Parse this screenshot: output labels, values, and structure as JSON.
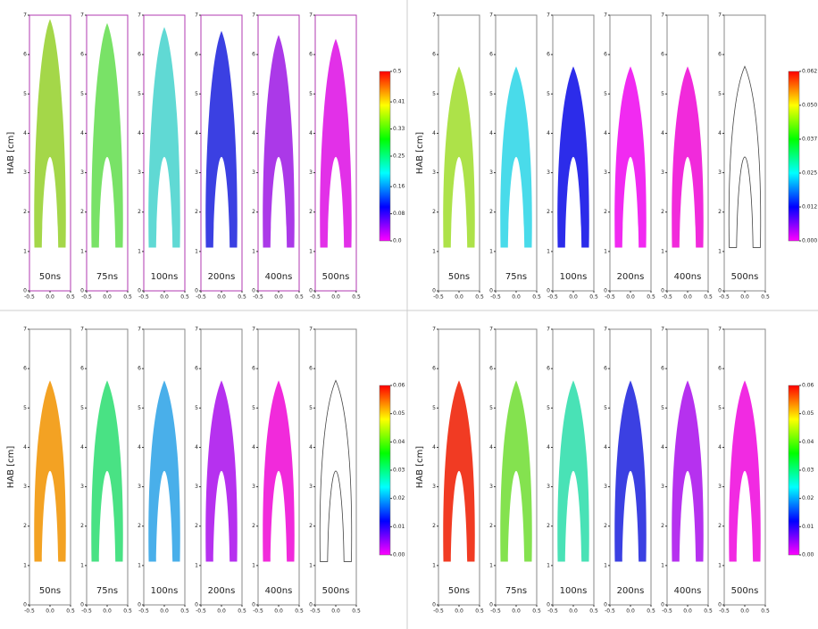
{
  "chart_data": [
    {
      "type": "heatmap",
      "ylabel": "HAB [cm]",
      "categories": [
        "50ns",
        "75ns",
        "100ns",
        "200ns",
        "400ns",
        "500ns"
      ],
      "colors": [
        "#9cd43a",
        "#6ee05a",
        "#52d6d0",
        "#2a30e0",
        "#a428e6",
        "#e01ee6"
      ],
      "frame_color": "#b03ab0",
      "xlim": [
        -0.5,
        0.5
      ],
      "xticks": [
        -0.5,
        {
          "value": 0,
          "label": "0.0"
        },
        0.5
      ],
      "ylim": [
        0,
        7
      ],
      "yticks": [
        0,
        1,
        2,
        3,
        4,
        5,
        6,
        7
      ],
      "clim": [
        0,
        0.5
      ],
      "cticks": [
        {
          "value": 0,
          "label": "0.0"
        },
        0.08,
        0.16,
        0.25,
        0.33,
        0.41,
        0.5
      ],
      "cmap": [
        "#ff00ff",
        "#0000ff",
        "#00ffff",
        "#00ff00",
        "#ffff00",
        "#ff0000"
      ]
    },
    {
      "type": "heatmap",
      "ylabel": "HAB [cm]",
      "categories": [
        "50ns",
        "75ns",
        "100ns",
        "200ns",
        "400ns",
        "500ns"
      ],
      "colors": [
        "#a6e03a",
        "#3ad8e8",
        "#1a1ae8",
        "#f018f0",
        "#f018d8",
        null
      ],
      "frame_color": "#888888",
      "xlim": [
        -0.5,
        0.5
      ],
      "xticks": [
        -0.5,
        {
          "value": 0,
          "label": "0.0"
        },
        0.5
      ],
      "ylim": [
        0,
        7
      ],
      "yticks": [
        0,
        1,
        2,
        3,
        4,
        5,
        6,
        7
      ],
      "clim": [
        0,
        0.0625
      ],
      "cticks": [
        {
          "value": 0,
          "label": "0.000"
        },
        {
          "value": 0.0125,
          "label": "0.012"
        },
        {
          "value": 0.025,
          "label": "0.025"
        },
        {
          "value": 0.0375,
          "label": "0.037"
        },
        {
          "value": 0.05,
          "label": "0.050"
        },
        {
          "value": 0.0625,
          "label": "0.062"
        }
      ],
      "cmap": [
        "#ff00ff",
        "#0000ff",
        "#00ffff",
        "#00ff00",
        "#ffff00",
        "#ff0000"
      ]
    },
    {
      "type": "heatmap",
      "ylabel": "HAB [cm]",
      "categories": [
        "50ns",
        "75ns",
        "100ns",
        "200ns",
        "400ns",
        "500ns"
      ],
      "colors": [
        "#f29a10",
        "#3ae07a",
        "#3aa8e8",
        "#b020ee",
        "#f018d8",
        null
      ],
      "frame_color": "#888888",
      "xlim": [
        -0.5,
        0.5
      ],
      "xticks": [
        -0.5,
        {
          "value": 0,
          "label": "0.0"
        },
        0.5
      ],
      "ylim": [
        0,
        7
      ],
      "yticks": [
        0,
        1,
        2,
        3,
        4,
        5,
        6,
        7
      ],
      "clim": [
        0,
        0.06
      ],
      "cticks": [
        {
          "value": 0,
          "label": "0.00"
        },
        0.01,
        0.02,
        0.03,
        0.04,
        0.05,
        0.06
      ],
      "cmap": [
        "#ff00ff",
        "#0000ff",
        "#00ffff",
        "#00ff00",
        "#ffff00",
        "#ff0000"
      ]
    },
    {
      "type": "heatmap",
      "ylabel": "HAB [cm]",
      "categories": [
        "50ns",
        "75ns",
        "100ns",
        "200ns",
        "400ns",
        "500ns"
      ],
      "colors": [
        "#f02a10",
        "#7ae040",
        "#3ae0b0",
        "#2a30e0",
        "#b020ee",
        "#f018e0"
      ],
      "frame_color": "#888888",
      "xlim": [
        -0.5,
        0.5
      ],
      "xticks": [
        -0.5,
        {
          "value": 0,
          "label": "0.0"
        },
        0.5
      ],
      "ylim": [
        0,
        7
      ],
      "yticks": [
        0,
        1,
        2,
        3,
        4,
        5,
        6,
        7
      ],
      "clim": [
        0,
        0.06
      ],
      "cticks": [
        {
          "value": 0,
          "label": "0.00"
        },
        0.01,
        0.02,
        0.03,
        0.04,
        0.05,
        0.06
      ],
      "cmap": [
        "#ff00ff",
        "#0000ff",
        "#00ffff",
        "#00ff00",
        "#ffff00",
        "#ff0000"
      ]
    }
  ]
}
